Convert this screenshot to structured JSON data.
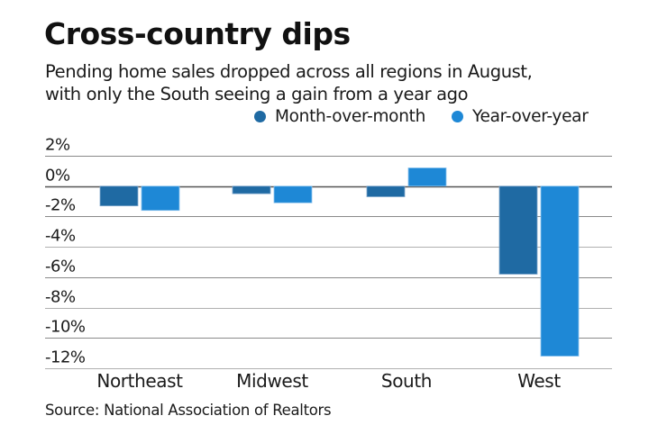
{
  "chart_data": {
    "type": "bar",
    "title": "Cross-country dips",
    "subtitle_lines": [
      "Pending home sales dropped across all regions in August,",
      "with only the South seeing a gain from a year ago"
    ],
    "categories": [
      "Northeast",
      "Midwest",
      "South",
      "West"
    ],
    "series": [
      {
        "name": "Month-over-month",
        "color": "#1f6aa3",
        "values": [
          -1.3,
          -0.5,
          -0.7,
          -5.8
        ]
      },
      {
        "name": "Year-over-year",
        "color": "#1e88d6",
        "values": [
          -1.6,
          -1.1,
          1.2,
          -11.2
        ]
      }
    ],
    "xlabel": "",
    "ylabel": "",
    "ylim": [
      -12,
      2
    ],
    "yticks": [
      2,
      0,
      -2,
      -4,
      -6,
      -8,
      -10,
      -12
    ],
    "ytick_labels": [
      "2%",
      "0%",
      "-2%",
      "-4%",
      "-6%",
      "-8%",
      "-10%",
      "-12%"
    ],
    "grid": true,
    "legend_position": "top-right",
    "source": "Source: National Association of Realtors"
  }
}
